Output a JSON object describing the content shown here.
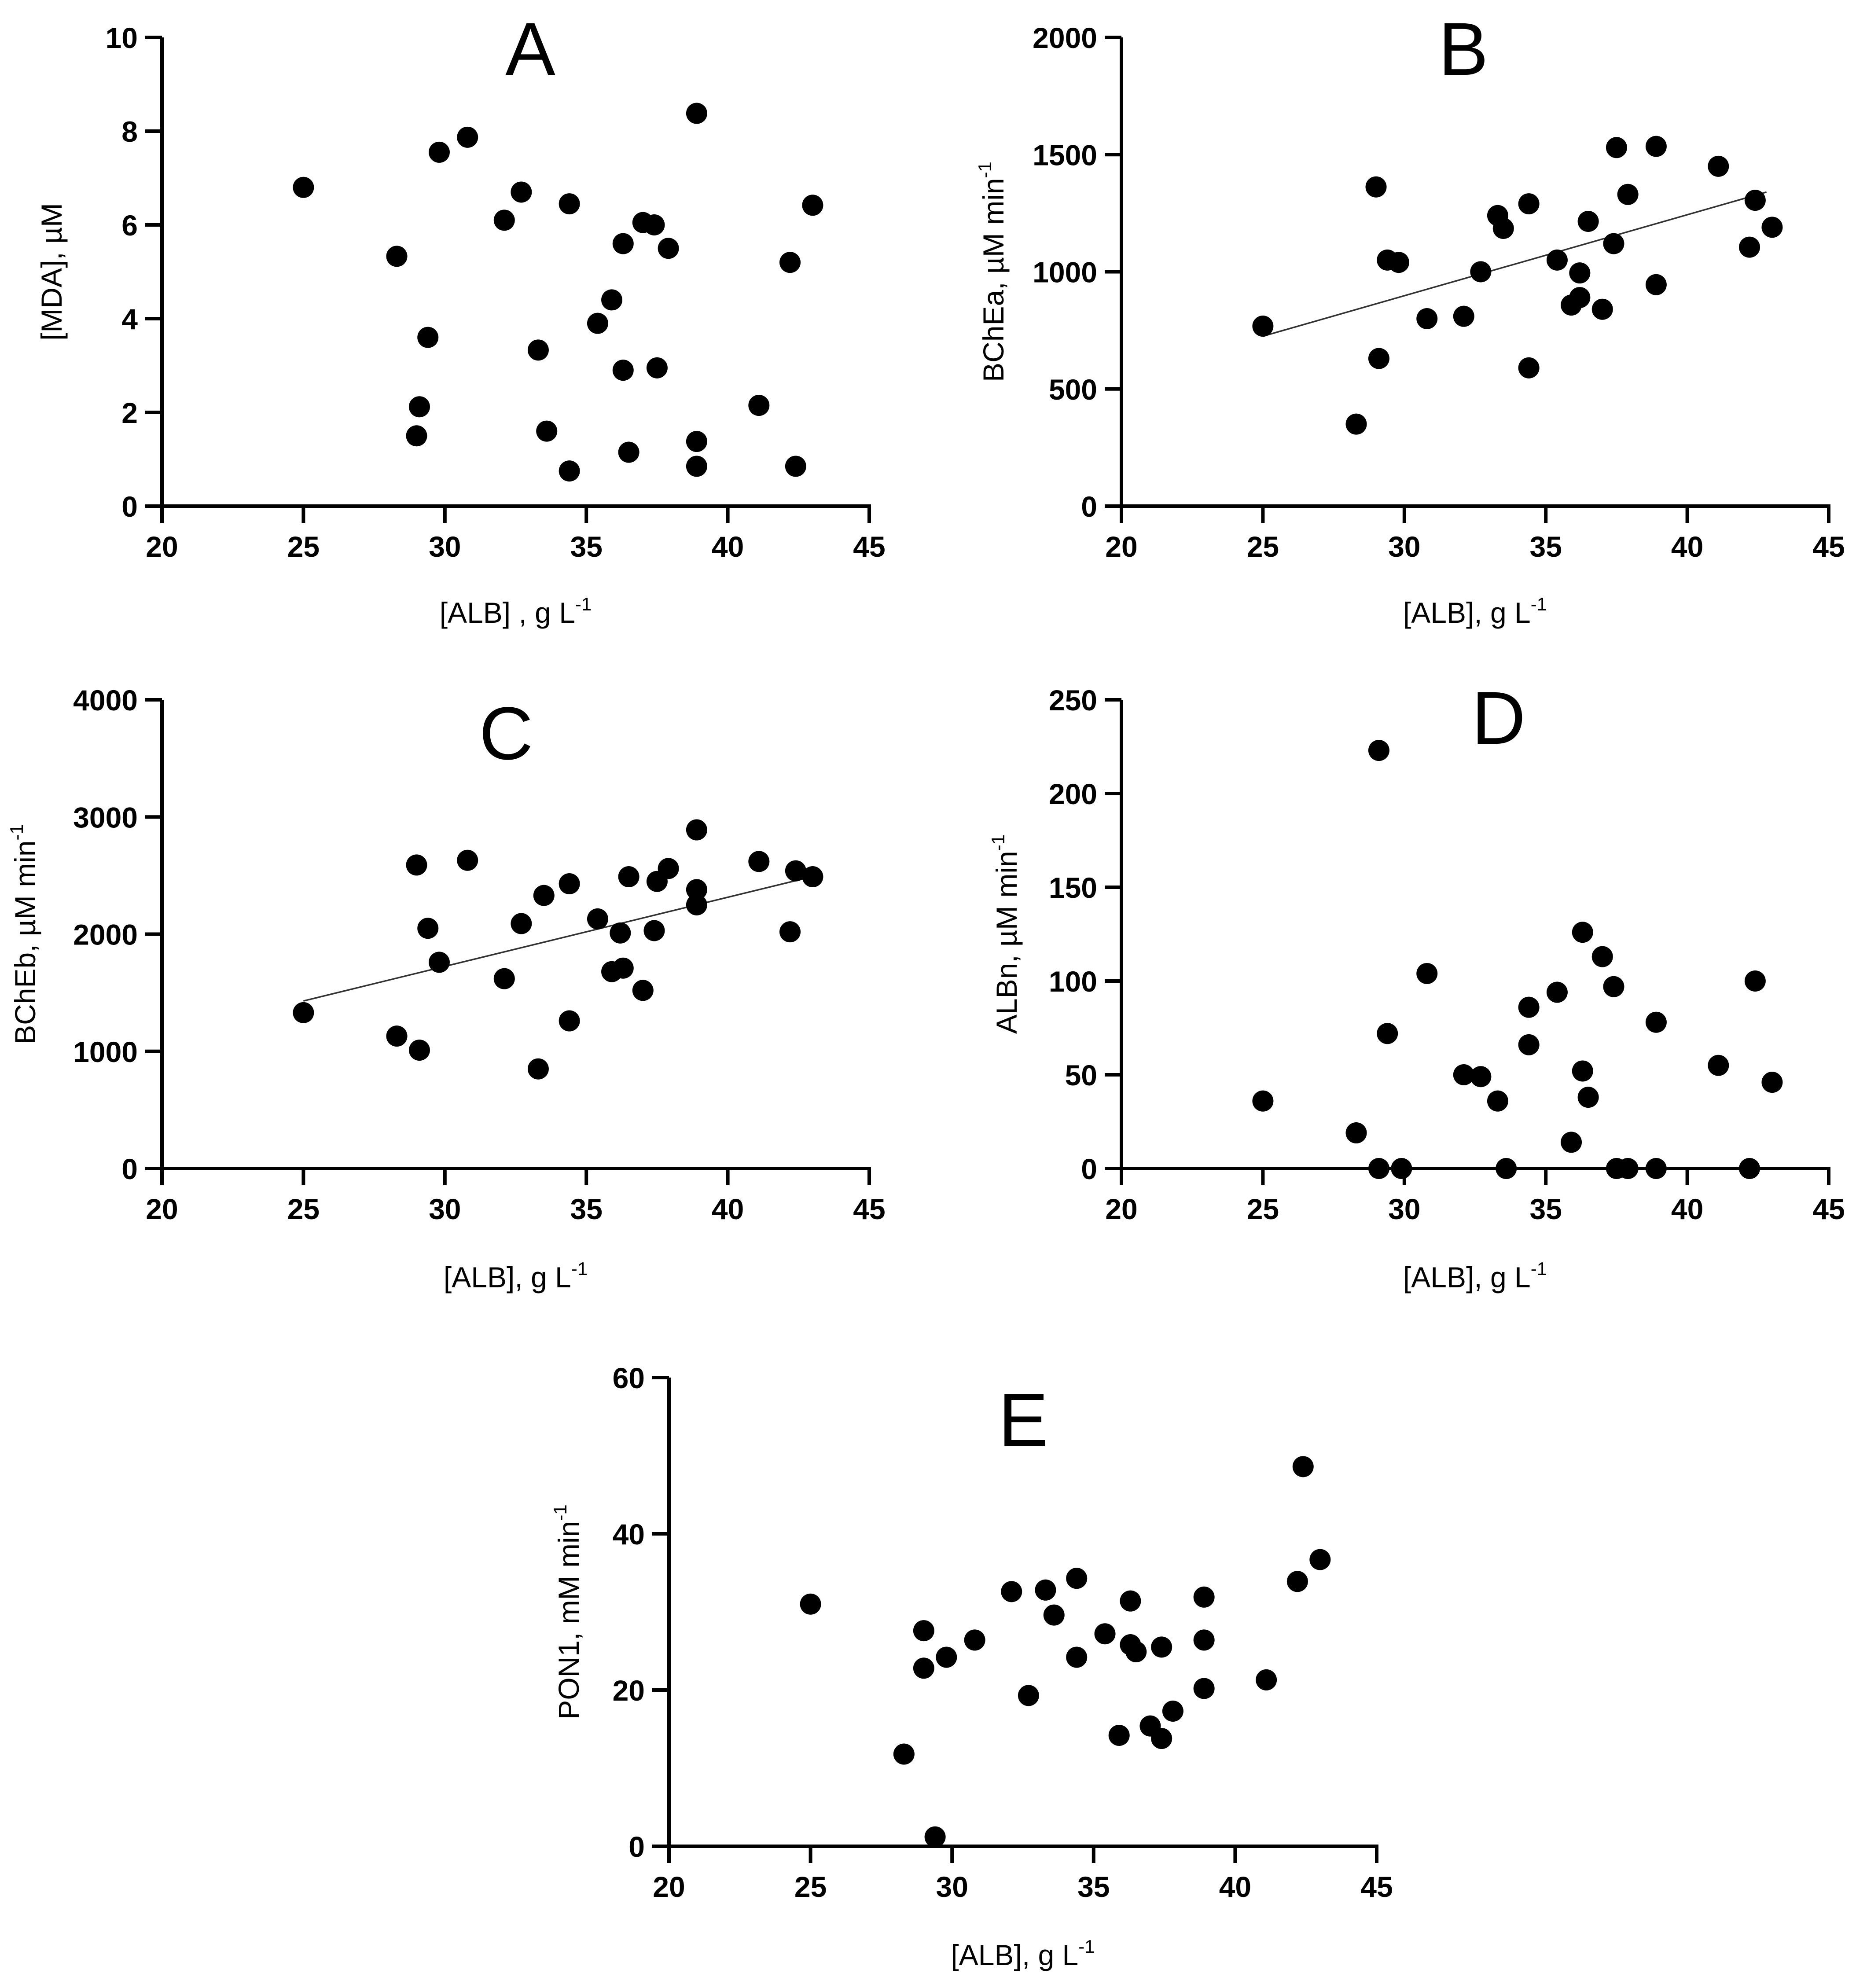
{
  "chart_data": [
    {
      "panel": "A",
      "type": "scatter",
      "title": "A",
      "xlabel": "[ALB] , g L",
      "xlabel_sup": "-1",
      "ylabel": "[MDA], µM",
      "ylabel_sup": "",
      "xlim": [
        20,
        45
      ],
      "ylim": [
        0,
        10
      ],
      "xticks": [
        20,
        25,
        30,
        35,
        40,
        45
      ],
      "yticks": [
        0,
        2,
        4,
        6,
        8,
        10
      ],
      "fit_line": null,
      "points": [
        [
          25.0,
          6.8
        ],
        [
          28.3,
          5.33
        ],
        [
          29.0,
          1.5
        ],
        [
          29.1,
          2.12
        ],
        [
          29.4,
          3.6
        ],
        [
          29.8,
          7.55
        ],
        [
          30.8,
          7.87
        ],
        [
          32.1,
          6.1
        ],
        [
          32.7,
          6.7
        ],
        [
          33.3,
          3.33
        ],
        [
          33.6,
          1.6
        ],
        [
          34.4,
          6.45
        ],
        [
          34.4,
          0.75
        ],
        [
          35.4,
          3.9
        ],
        [
          35.9,
          4.4
        ],
        [
          36.3,
          5.6
        ],
        [
          36.3,
          2.9
        ],
        [
          36.5,
          1.15
        ],
        [
          37.0,
          6.05
        ],
        [
          37.4,
          6.0
        ],
        [
          37.5,
          2.95
        ],
        [
          37.9,
          5.5
        ],
        [
          38.9,
          8.38
        ],
        [
          38.9,
          1.38
        ],
        [
          38.9,
          0.85
        ],
        [
          41.1,
          2.15
        ],
        [
          42.2,
          5.2
        ],
        [
          42.4,
          0.85
        ],
        [
          43.0,
          6.42
        ]
      ]
    },
    {
      "panel": "B",
      "type": "scatter",
      "title": "B",
      "xlabel": "[ALB], g L",
      "xlabel_sup": "-1",
      "ylabel": "BChEa, µM min",
      "ylabel_sup": "-1",
      "xlim": [
        20,
        45
      ],
      "ylim": [
        0,
        2000
      ],
      "xticks": [
        20,
        25,
        30,
        35,
        40,
        45
      ],
      "yticks": [
        0,
        500,
        1000,
        1500,
        2000
      ],
      "fit_line": {
        "x": [
          25,
          42.8
        ],
        "y": [
          725,
          1340
        ]
      },
      "points": [
        [
          25.0,
          768
        ],
        [
          28.3,
          350
        ],
        [
          29.0,
          1362
        ],
        [
          29.1,
          630
        ],
        [
          29.4,
          1050
        ],
        [
          29.8,
          1040
        ],
        [
          30.8,
          800
        ],
        [
          32.1,
          810
        ],
        [
          32.7,
          1000
        ],
        [
          33.3,
          1240
        ],
        [
          33.5,
          1185
        ],
        [
          34.4,
          1290
        ],
        [
          34.4,
          590
        ],
        [
          35.4,
          1050
        ],
        [
          35.9,
          858
        ],
        [
          36.2,
          995
        ],
        [
          36.2,
          890
        ],
        [
          36.5,
          1215
        ],
        [
          37.0,
          840
        ],
        [
          37.4,
          1120
        ],
        [
          37.5,
          1530
        ],
        [
          37.9,
          1330
        ],
        [
          38.9,
          1535
        ],
        [
          38.9,
          945
        ],
        [
          41.1,
          1450
        ],
        [
          42.2,
          1105
        ],
        [
          42.4,
          1305
        ],
        [
          43.0,
          1190
        ]
      ]
    },
    {
      "panel": "C",
      "type": "scatter",
      "title": "C",
      "xlabel": "[ALB], g L",
      "xlabel_sup": "-1",
      "ylabel": "BChEb, µM min",
      "ylabel_sup": "-1",
      "xlim": [
        20,
        45
      ],
      "ylim": [
        0,
        4000
      ],
      "xticks": [
        20,
        25,
        30,
        35,
        40,
        45
      ],
      "yticks": [
        0,
        1000,
        2000,
        3000,
        4000
      ],
      "fit_line": {
        "x": [
          25,
          42.8
        ],
        "y": [
          1430,
          2480
        ]
      },
      "points": [
        [
          25.0,
          1330
        ],
        [
          28.3,
          1130
        ],
        [
          29.0,
          2590
        ],
        [
          29.1,
          1010
        ],
        [
          29.4,
          2050
        ],
        [
          29.8,
          1760
        ],
        [
          30.8,
          2630
        ],
        [
          32.1,
          1620
        ],
        [
          32.7,
          2090
        ],
        [
          33.3,
          850
        ],
        [
          33.5,
          2330
        ],
        [
          34.4,
          2430
        ],
        [
          34.4,
          1260
        ],
        [
          35.4,
          2130
        ],
        [
          35.9,
          1680
        ],
        [
          36.2,
          2010
        ],
        [
          36.3,
          1710
        ],
        [
          36.5,
          2490
        ],
        [
          37.0,
          1520
        ],
        [
          37.4,
          2030
        ],
        [
          37.5,
          2450
        ],
        [
          37.9,
          2560
        ],
        [
          38.9,
          2890
        ],
        [
          38.9,
          2380
        ],
        [
          38.9,
          2250
        ],
        [
          41.1,
          2620
        ],
        [
          42.2,
          2020
        ],
        [
          42.4,
          2540
        ],
        [
          43.0,
          2490
        ]
      ]
    },
    {
      "panel": "D",
      "type": "scatter",
      "title": "D",
      "xlabel": "[ALB], g L",
      "xlabel_sup": "-1",
      "ylabel": "ALBn, µM min",
      "ylabel_sup": "-1",
      "xlim": [
        20,
        45
      ],
      "ylim": [
        0,
        250
      ],
      "xticks": [
        20,
        25,
        30,
        35,
        40,
        45
      ],
      "yticks": [
        0,
        50,
        100,
        150,
        200,
        250
      ],
      "fit_line": null,
      "points": [
        [
          25.0,
          36
        ],
        [
          28.3,
          19
        ],
        [
          29.1,
          223
        ],
        [
          29.1,
          0
        ],
        [
          29.4,
          72
        ],
        [
          29.9,
          0
        ],
        [
          30.8,
          104
        ],
        [
          32.1,
          50
        ],
        [
          32.7,
          49
        ],
        [
          33.3,
          36
        ],
        [
          33.6,
          0
        ],
        [
          34.4,
          86
        ],
        [
          34.4,
          66
        ],
        [
          35.4,
          94
        ],
        [
          35.9,
          14
        ],
        [
          36.3,
          126
        ],
        [
          36.3,
          52
        ],
        [
          36.5,
          38
        ],
        [
          37.0,
          113
        ],
        [
          37.4,
          97
        ],
        [
          37.5,
          0
        ],
        [
          37.9,
          0
        ],
        [
          38.9,
          78
        ],
        [
          38.9,
          0
        ],
        [
          41.1,
          55
        ],
        [
          42.2,
          0
        ],
        [
          42.4,
          100
        ],
        [
          43.0,
          46
        ]
      ]
    },
    {
      "panel": "E",
      "type": "scatter",
      "title": "E",
      "xlabel": "[ALB], g L",
      "xlabel_sup": "-1",
      "ylabel": "PON1, mM min",
      "ylabel_sup": "-1",
      "xlim": [
        20,
        45
      ],
      "ylim": [
        0,
        60
      ],
      "xticks": [
        20,
        25,
        30,
        35,
        40,
        45
      ],
      "yticks": [
        0,
        20,
        40,
        60
      ],
      "fit_line": null,
      "points": [
        [
          25.0,
          31.0
        ],
        [
          28.3,
          11.8
        ],
        [
          29.0,
          27.6
        ],
        [
          29.0,
          22.8
        ],
        [
          29.4,
          1.2
        ],
        [
          29.8,
          24.2
        ],
        [
          30.8,
          26.4
        ],
        [
          32.1,
          32.6
        ],
        [
          32.7,
          19.3
        ],
        [
          33.3,
          32.8
        ],
        [
          33.6,
          29.6
        ],
        [
          34.4,
          34.3
        ],
        [
          34.4,
          24.2
        ],
        [
          35.4,
          27.2
        ],
        [
          35.9,
          14.2
        ],
        [
          36.3,
          31.4
        ],
        [
          36.3,
          25.8
        ],
        [
          36.5,
          24.9
        ],
        [
          37.0,
          15.4
        ],
        [
          37.4,
          25.5
        ],
        [
          37.4,
          13.8
        ],
        [
          37.8,
          17.3
        ],
        [
          38.9,
          31.9
        ],
        [
          38.9,
          26.4
        ],
        [
          38.9,
          20.2
        ],
        [
          41.1,
          21.3
        ],
        [
          42.2,
          33.9
        ],
        [
          42.4,
          48.6
        ],
        [
          43.0,
          36.7
        ]
      ]
    }
  ]
}
